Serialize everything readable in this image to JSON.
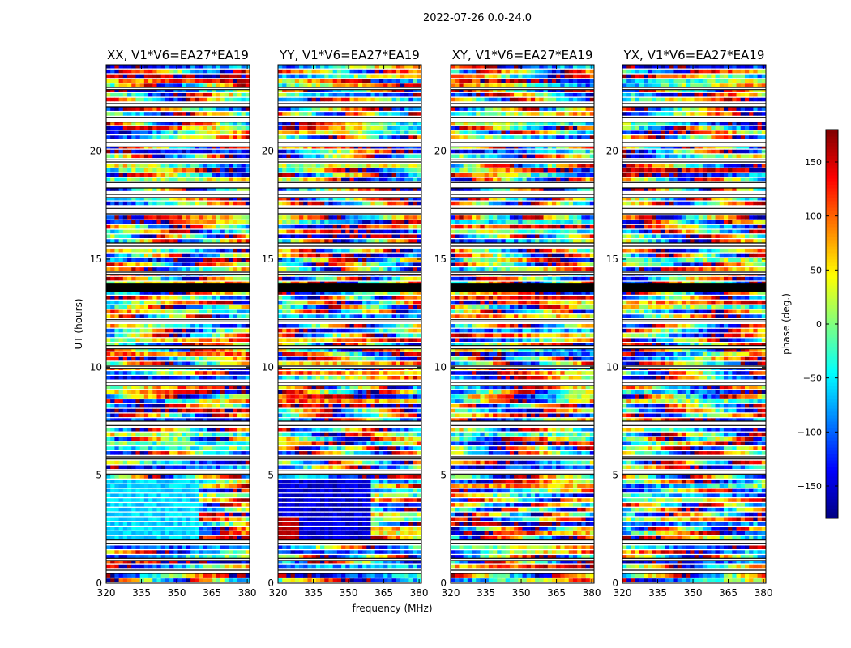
{
  "figure": {
    "suptitle": "2022-07-26 0.0-24.0"
  },
  "chart_data": {
    "type": "heatmap",
    "xlabel": "frequency (MHz)",
    "ylabel": "UT (hours)",
    "xlim": [
      320,
      381
    ],
    "ylim": [
      0,
      24
    ],
    "x_ticks": [
      320,
      335,
      350,
      365,
      380
    ],
    "y_ticks": [
      0,
      5,
      10,
      15,
      20
    ],
    "colorbar": {
      "label": "phase (deg.)",
      "range": [
        -180,
        180
      ],
      "ticks": [
        -150,
        -100,
        -50,
        0,
        50,
        100,
        150
      ],
      "tick_labels": [
        "−150",
        "−100",
        "−50",
        "0",
        "50",
        "100",
        "150"
      ],
      "colormap": "jet"
    },
    "panels": [
      {
        "title": "XX, V1*V6=EA27*EA19",
        "pol": "XX",
        "low_band_phase": -60
      },
      {
        "title": "YY, V1*V6=EA27*EA19",
        "pol": "YY",
        "low_band_phase": -150
      },
      {
        "title": "XY, V1*V6=EA27*EA19",
        "pol": "XY",
        "low_band_phase": null
      },
      {
        "title": "YX, V1*V6=EA27*EA19",
        "pol": "YX",
        "low_band_phase": null
      }
    ],
    "flagged_time_ranges_hours": [
      [
        0.45,
        0.6
      ],
      [
        1.05,
        1.15
      ],
      [
        1.85,
        2.0
      ],
      [
        5.05,
        5.2
      ],
      [
        5.75,
        5.85
      ],
      [
        7.3,
        7.5
      ],
      [
        9.15,
        9.3
      ],
      [
        9.95,
        10.05
      ],
      [
        10.85,
        11.0
      ],
      [
        12.1,
        12.2
      ],
      [
        13.5,
        13.85
      ],
      [
        14.3,
        14.4
      ],
      [
        15.6,
        15.75
      ],
      [
        17.1,
        17.35
      ],
      [
        17.85,
        18.0
      ],
      [
        18.3,
        18.55
      ],
      [
        19.5,
        19.6
      ],
      [
        20.2,
        20.4
      ],
      [
        21.35,
        21.55
      ],
      [
        22.05,
        22.2
      ],
      [
        22.85,
        22.95
      ]
    ]
  }
}
